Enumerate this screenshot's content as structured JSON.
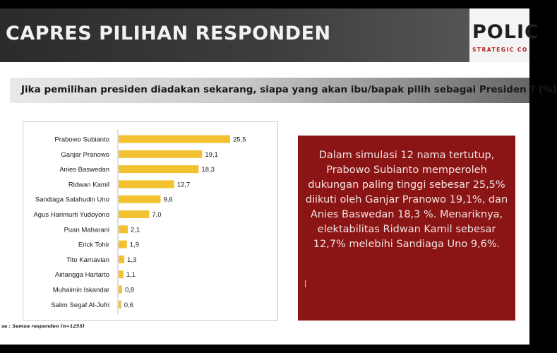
{
  "header": {
    "title": "CAPRES PILIHAN RESPONDEN",
    "logo_text": "POLIC",
    "logo_subtext": "STRATEGIC CO"
  },
  "question": "Jika pemilihan presiden diadakan sekarang, siapa yang akan ibu/bapak pilih sebagai Presiden ? (%)",
  "chart_data": {
    "type": "bar",
    "orientation": "horizontal",
    "title": "",
    "categories": [
      "Prabowo Subianto",
      "Ganjar Pranowo",
      "Anies Baswedan",
      "Ridwan Kamil",
      "Sandiaga Salahudin Uno",
      "Agus Harimurti Yudoyono",
      "Puan Maharani",
      "Erick Tohir",
      "Tito Karnavian",
      "Airlangga Hartarto",
      "Muhaimin Iskandar",
      "Salim Segaf Al-Jufri"
    ],
    "values": [
      25.5,
      19.1,
      18.3,
      12.7,
      9.6,
      7.0,
      2.1,
      1.9,
      1.3,
      1.1,
      0.8,
      0.6
    ],
    "value_labels": [
      "25,5",
      "19,1",
      "18,3",
      "12,7",
      "9,6",
      "7,0",
      "2,1",
      "1,9",
      "1,3",
      "1,1",
      "0,8",
      "0,6"
    ],
    "xlim": [
      0,
      25.5
    ],
    "bar_color": "#f2c231",
    "grid": false,
    "legend": false
  },
  "note": "Dalam simulasi 12 nama tertutup, Prabowo Subianto memperoleh dukungan paling tinggi sebesar 25,5% diikuti oleh Ganjar Pranowo 19,1%, dan Anies Baswedan 18,3 %. Menariknya, elektabilitas Ridwan Kamil sebesar 12,7% melebihi Sandiaga Uno 9,6%.",
  "source": "se : Semua responden (n=1255)",
  "colors": {
    "note_background": "#8b1414",
    "title_bar": "#2b2b2b",
    "logo_accent": "#b22222"
  }
}
